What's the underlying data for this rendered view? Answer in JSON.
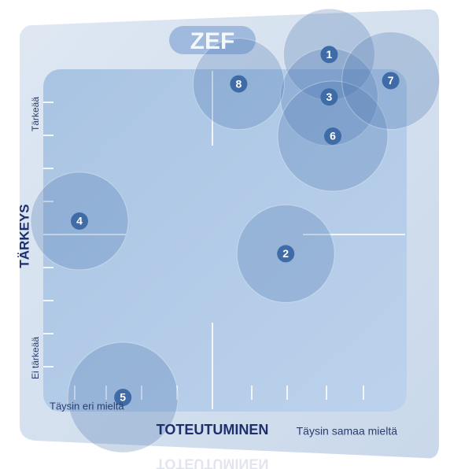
{
  "chart_data": {
    "type": "bubble",
    "title": "ZEF",
    "x_label": "TOTEUTUMINEN",
    "y_label": "TÄRKEYS",
    "y_top_label": "Tärkeää",
    "y_bottom_label": "Ei tärkeää",
    "x_left_label": "Täysin eri mieltä",
    "x_right_label": "Täysin samaa mieltä",
    "labels": [
      "1",
      "2",
      "3",
      "4",
      "5",
      "6",
      "7",
      "8"
    ],
    "x": [
      7.9,
      6.7,
      7.9,
      1.0,
      2.2,
      8.0,
      9.6,
      5.4
    ],
    "y": [
      10.5,
      4.4,
      9.2,
      5.4,
      0,
      8.0,
      9.7,
      9.6
    ],
    "sizes": [
      5.8,
      6.2,
      6.2,
      6.2,
      7.0,
      7.0,
      6.2,
      5.8
    ],
    "xlim": [
      0,
      10
    ],
    "ylim": [
      0,
      10
    ],
    "color": "#4a78b0"
  }
}
